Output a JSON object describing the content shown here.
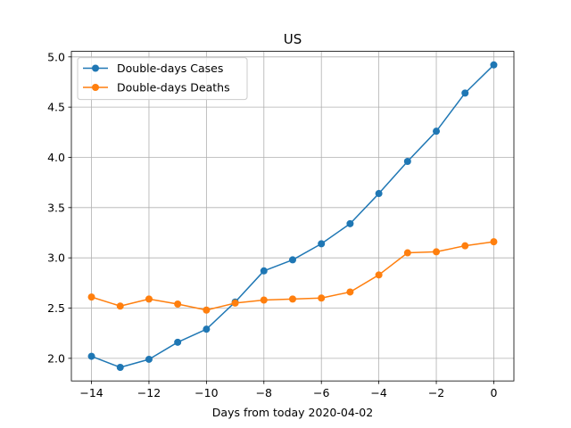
{
  "chart_data": {
    "type": "line",
    "title": "US",
    "xlabel": "Days from today 2020-04-02",
    "ylabel": "",
    "xlim": [
      -14.7,
      0.7
    ],
    "ylim": [
      1.775,
      5.055
    ],
    "grid": true,
    "legend_position": "top-left",
    "x": [
      -14,
      -13,
      -12,
      -11,
      -10,
      -9,
      -8,
      -7,
      -6,
      -5,
      -4,
      -3,
      -2,
      -1,
      0
    ],
    "x_ticks": [
      -14,
      -12,
      -10,
      -8,
      -6,
      -4,
      -2,
      0
    ],
    "x_tick_labels": [
      "−14",
      "−12",
      "−10",
      "−8",
      "−6",
      "−4",
      "−2",
      "0"
    ],
    "y_ticks": [
      2.0,
      2.5,
      3.0,
      3.5,
      4.0,
      4.5,
      5.0
    ],
    "y_tick_labels": [
      "2.0",
      "2.5",
      "3.0",
      "3.5",
      "4.0",
      "4.5",
      "5.0"
    ],
    "series": [
      {
        "name": "Double-days Cases",
        "color": "#1f77b4",
        "values": [
          2.02,
          1.91,
          1.99,
          2.16,
          2.29,
          2.56,
          2.87,
          2.98,
          3.14,
          3.34,
          3.64,
          3.96,
          4.26,
          4.64,
          4.92
        ]
      },
      {
        "name": "Double-days Deaths",
        "color": "#ff7f0e",
        "values": [
          2.61,
          2.52,
          2.59,
          2.54,
          2.48,
          2.55,
          2.58,
          2.59,
          2.6,
          2.66,
          2.83,
          3.05,
          3.06,
          3.12,
          3.16
        ]
      }
    ]
  }
}
